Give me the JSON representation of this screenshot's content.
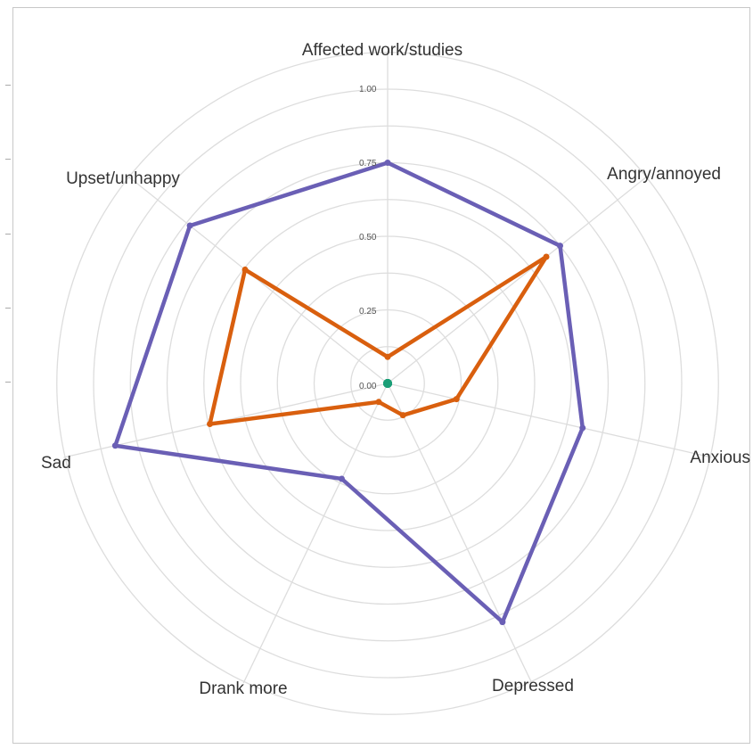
{
  "chart_data": {
    "type": "radar",
    "axes": [
      "Affected work/studies",
      "Angry/annoyed",
      "Anxious",
      "Depressed",
      "Drank more",
      "Sad",
      "Upset/unhappy"
    ],
    "radial_ticks": [
      "0.00",
      "0.25",
      "0.50",
      "0.75",
      "1.00"
    ],
    "rlim": [
      0,
      1
    ],
    "series": [
      {
        "color": "#6a5fb5",
        "values": [
          0.75,
          0.75,
          0.68,
          0.9,
          0.36,
          0.95,
          0.86
        ]
      },
      {
        "color": "#d95f0e",
        "values": [
          0.09,
          0.69,
          0.24,
          0.12,
          0.07,
          0.62,
          0.62
        ]
      },
      {
        "color": "#1b9e77",
        "values": [
          0.0,
          0.0,
          0.0,
          0.0,
          0.0,
          0.0,
          0.0
        ]
      }
    ],
    "grid": true,
    "gridline_color": "#dddddd"
  }
}
